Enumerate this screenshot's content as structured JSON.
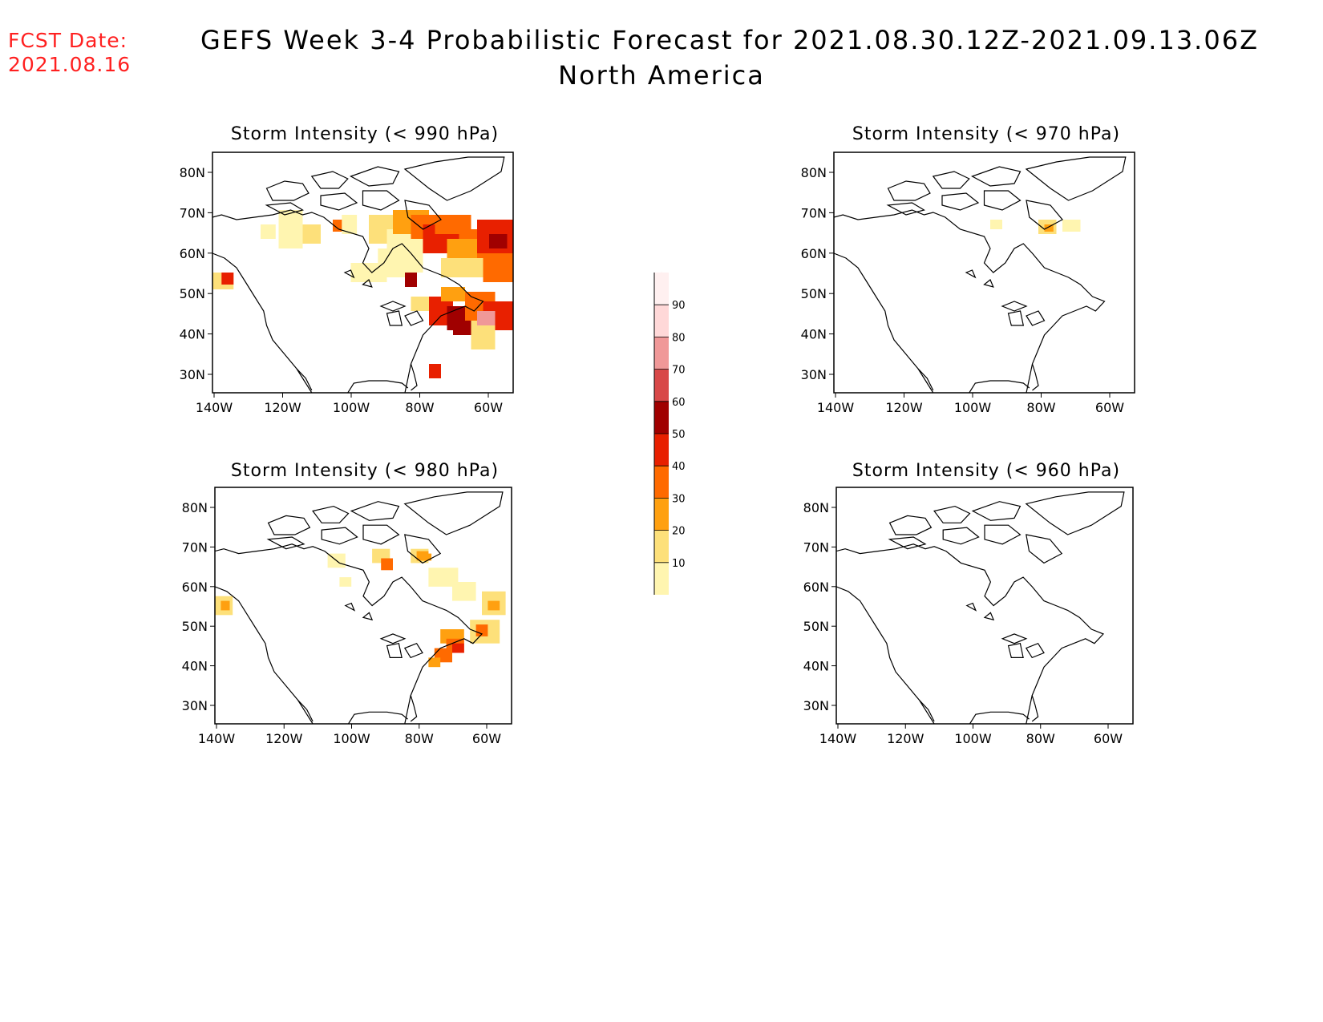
{
  "header": {
    "fcst_label": "FCST Date:",
    "fcst_date": "2021.08.16",
    "title": "GEFS Week 3-4 Probabilistic Forecast for 2021.08.30.12Z-2021.09.13.06Z",
    "subtitle": "North America"
  },
  "lon_ticks": [
    "140W",
    "120W",
    "100W",
    "80W",
    "60W"
  ],
  "lat_ticks": [
    "80N",
    "70N",
    "60N",
    "50N",
    "40N",
    "30N"
  ],
  "panels": [
    {
      "id": "p990",
      "title": "Storm Intensity (< 990 hPa)",
      "intensity": "high"
    },
    {
      "id": "p970",
      "title": "Storm Intensity (< 970 hPa)",
      "intensity": "low"
    },
    {
      "id": "p980",
      "title": "Storm Intensity (< 980 hPa)",
      "intensity": "medium"
    },
    {
      "id": "p960",
      "title": "Storm Intensity (< 960 hPa)",
      "intensity": "none"
    }
  ],
  "colorbar": {
    "ticks": [
      "10",
      "20",
      "30",
      "40",
      "50",
      "60",
      "70",
      "80",
      "90"
    ],
    "colors": [
      "#fff5b0",
      "#fde07a",
      "#ffa010",
      "#ff6a00",
      "#e82000",
      "#a00000",
      "#d84848",
      "#f09898",
      "#ffd8d8",
      "#fff0f0"
    ]
  }
}
